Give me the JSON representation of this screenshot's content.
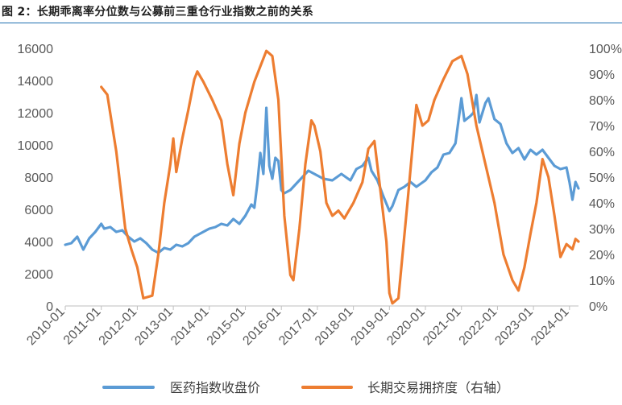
{
  "title": "图 2：长期乖离率分位数与公募前三重仓行业指数之前的关系",
  "colors": {
    "pharma": "#5b9bd5",
    "crowd": "#ed7d31",
    "axis": "#bfbfbf",
    "text": "#595959"
  },
  "chart_data": {
    "type": "line",
    "title": "图 2：长期乖离率分位数与公募前三重仓行业指数之前的关系",
    "x_range": [
      "2010-01",
      "2024-04"
    ],
    "x_ticks": [
      "2010-01",
      "2011-01",
      "2012-01",
      "2013-01",
      "2014-01",
      "2015-01",
      "2016-01",
      "2017-01",
      "2018-01",
      "2019-01",
      "2020-01",
      "2021-01",
      "2022-01",
      "2023-01",
      "2024-01"
    ],
    "y_left": {
      "min": 0,
      "max": 16000,
      "ticks": [
        "0",
        "2000",
        "4000",
        "6000",
        "8000",
        "10000",
        "12000",
        "14000",
        "16000"
      ]
    },
    "y_right": {
      "min": 0,
      "max": 100,
      "ticks": [
        "0%",
        "10%",
        "20%",
        "30%",
        "40%",
        "50%",
        "60%",
        "70%",
        "80%",
        "90%",
        "100%"
      ]
    },
    "legend_position": "bottom",
    "grid": false,
    "series": [
      {
        "name": "医药指数收盘价",
        "axis": "left",
        "color": "#5b9bd5",
        "points": [
          [
            "2010-01",
            3800
          ],
          [
            "2010-03",
            3900
          ],
          [
            "2010-05",
            4300
          ],
          [
            "2010-07",
            3500
          ],
          [
            "2010-09",
            4200
          ],
          [
            "2010-11",
            4600
          ],
          [
            "2011-01",
            5100
          ],
          [
            "2011-02",
            4800
          ],
          [
            "2011-04",
            4900
          ],
          [
            "2011-06",
            4600
          ],
          [
            "2011-08",
            4700
          ],
          [
            "2011-10",
            4300
          ],
          [
            "2011-12",
            4000
          ],
          [
            "2012-02",
            4200
          ],
          [
            "2012-04",
            3900
          ],
          [
            "2012-06",
            3500
          ],
          [
            "2012-08",
            3300
          ],
          [
            "2012-10",
            3600
          ],
          [
            "2012-12",
            3500
          ],
          [
            "2013-02",
            3800
          ],
          [
            "2013-04",
            3700
          ],
          [
            "2013-06",
            3900
          ],
          [
            "2013-08",
            4300
          ],
          [
            "2013-10",
            4500
          ],
          [
            "2014-01",
            4800
          ],
          [
            "2014-03",
            4900
          ],
          [
            "2014-05",
            5100
          ],
          [
            "2014-07",
            5000
          ],
          [
            "2014-09",
            5400
          ],
          [
            "2014-11",
            5100
          ],
          [
            "2015-01",
            5600
          ],
          [
            "2015-03",
            6300
          ],
          [
            "2015-04",
            6100
          ],
          [
            "2015-05",
            7600
          ],
          [
            "2015-06",
            9500
          ],
          [
            "2015-07",
            8200
          ],
          [
            "2015-08",
            12300
          ],
          [
            "2015-09",
            8700
          ],
          [
            "2015-10",
            7900
          ],
          [
            "2015-11",
            9200
          ],
          [
            "2015-12",
            9000
          ],
          [
            "2016-01",
            7200
          ],
          [
            "2016-02",
            7000
          ],
          [
            "2016-04",
            7200
          ],
          [
            "2016-06",
            7600
          ],
          [
            "2016-08",
            8000
          ],
          [
            "2016-10",
            8400
          ],
          [
            "2016-12",
            8200
          ],
          [
            "2017-03",
            7900
          ],
          [
            "2017-06",
            7800
          ],
          [
            "2017-09",
            8200
          ],
          [
            "2017-12",
            7800
          ],
          [
            "2018-02",
            8500
          ],
          [
            "2018-04",
            8700
          ],
          [
            "2018-06",
            9200
          ],
          [
            "2018-07",
            8400
          ],
          [
            "2018-09",
            7800
          ],
          [
            "2018-11",
            6800
          ],
          [
            "2019-01",
            5900
          ],
          [
            "2019-02",
            6200
          ],
          [
            "2019-04",
            7200
          ],
          [
            "2019-06",
            7400
          ],
          [
            "2019-08",
            7700
          ],
          [
            "2019-10",
            7400
          ],
          [
            "2020-01",
            7800
          ],
          [
            "2020-03",
            8300
          ],
          [
            "2020-05",
            8600
          ],
          [
            "2020-07",
            9400
          ],
          [
            "2020-09",
            9500
          ],
          [
            "2020-11",
            10100
          ],
          [
            "2021-01",
            12900
          ],
          [
            "2021-02",
            11500
          ],
          [
            "2021-04",
            11800
          ],
          [
            "2021-05",
            12000
          ],
          [
            "2021-06",
            13100
          ],
          [
            "2021-07",
            11400
          ],
          [
            "2021-09",
            12600
          ],
          [
            "2021-10",
            12900
          ],
          [
            "2021-12",
            11600
          ],
          [
            "2022-02",
            11300
          ],
          [
            "2022-04",
            10100
          ],
          [
            "2022-06",
            9500
          ],
          [
            "2022-08",
            9800
          ],
          [
            "2022-10",
            9100
          ],
          [
            "2022-12",
            9700
          ],
          [
            "2023-02",
            9400
          ],
          [
            "2023-04",
            9700
          ],
          [
            "2023-06",
            9200
          ],
          [
            "2023-08",
            8700
          ],
          [
            "2023-10",
            8500
          ],
          [
            "2023-12",
            8600
          ],
          [
            "2024-01",
            7700
          ],
          [
            "2024-02",
            6600
          ],
          [
            "2024-03",
            7700
          ],
          [
            "2024-04",
            7300
          ]
        ]
      },
      {
        "name": "长期交易拥挤度（右轴）",
        "axis": "right",
        "color": "#ed7d31",
        "points": [
          [
            "2011-01",
            85
          ],
          [
            "2011-03",
            82
          ],
          [
            "2011-06",
            60
          ],
          [
            "2011-09",
            30
          ],
          [
            "2011-11",
            22
          ],
          [
            "2012-01",
            15
          ],
          [
            "2012-03",
            3
          ],
          [
            "2012-06",
            4
          ],
          [
            "2012-08",
            20
          ],
          [
            "2012-10",
            40
          ],
          [
            "2012-12",
            55
          ],
          [
            "2013-01",
            65
          ],
          [
            "2013-02",
            52
          ],
          [
            "2013-04",
            65
          ],
          [
            "2013-06",
            76
          ],
          [
            "2013-08",
            88
          ],
          [
            "2013-09",
            91
          ],
          [
            "2013-11",
            87
          ],
          [
            "2014-02",
            80
          ],
          [
            "2014-05",
            72
          ],
          [
            "2014-07",
            55
          ],
          [
            "2014-09",
            43
          ],
          [
            "2014-11",
            63
          ],
          [
            "2015-01",
            75
          ],
          [
            "2015-04",
            87
          ],
          [
            "2015-06",
            93
          ],
          [
            "2015-08",
            99
          ],
          [
            "2015-10",
            97
          ],
          [
            "2015-12",
            80
          ],
          [
            "2016-02",
            35
          ],
          [
            "2016-04",
            12
          ],
          [
            "2016-05",
            10
          ],
          [
            "2016-07",
            30
          ],
          [
            "2016-09",
            55
          ],
          [
            "2016-11",
            72
          ],
          [
            "2016-12",
            70
          ],
          [
            "2017-02",
            60
          ],
          [
            "2017-04",
            40
          ],
          [
            "2017-06",
            35
          ],
          [
            "2017-08",
            37
          ],
          [
            "2017-10",
            34
          ],
          [
            "2018-01",
            40
          ],
          [
            "2018-04",
            48
          ],
          [
            "2018-06",
            61
          ],
          [
            "2018-08",
            64
          ],
          [
            "2018-10",
            45
          ],
          [
            "2018-12",
            25
          ],
          [
            "2019-01",
            5
          ],
          [
            "2019-02",
            1
          ],
          [
            "2019-04",
            3
          ],
          [
            "2019-07",
            40
          ],
          [
            "2019-10",
            78
          ],
          [
            "2019-12",
            70
          ],
          [
            "2020-02",
            72
          ],
          [
            "2020-04",
            80
          ],
          [
            "2020-07",
            88
          ],
          [
            "2020-10",
            95
          ],
          [
            "2021-01",
            97
          ],
          [
            "2021-03",
            90
          ],
          [
            "2021-06",
            70
          ],
          [
            "2021-09",
            55
          ],
          [
            "2021-12",
            40
          ],
          [
            "2022-03",
            20
          ],
          [
            "2022-06",
            10
          ],
          [
            "2022-08",
            6
          ],
          [
            "2022-10",
            15
          ],
          [
            "2022-12",
            28
          ],
          [
            "2023-02",
            40
          ],
          [
            "2023-04",
            57
          ],
          [
            "2023-06",
            50
          ],
          [
            "2023-08",
            35
          ],
          [
            "2023-10",
            19
          ],
          [
            "2023-12",
            24
          ],
          [
            "2024-02",
            22
          ],
          [
            "2024-03",
            26
          ],
          [
            "2024-04",
            25
          ]
        ]
      }
    ]
  }
}
